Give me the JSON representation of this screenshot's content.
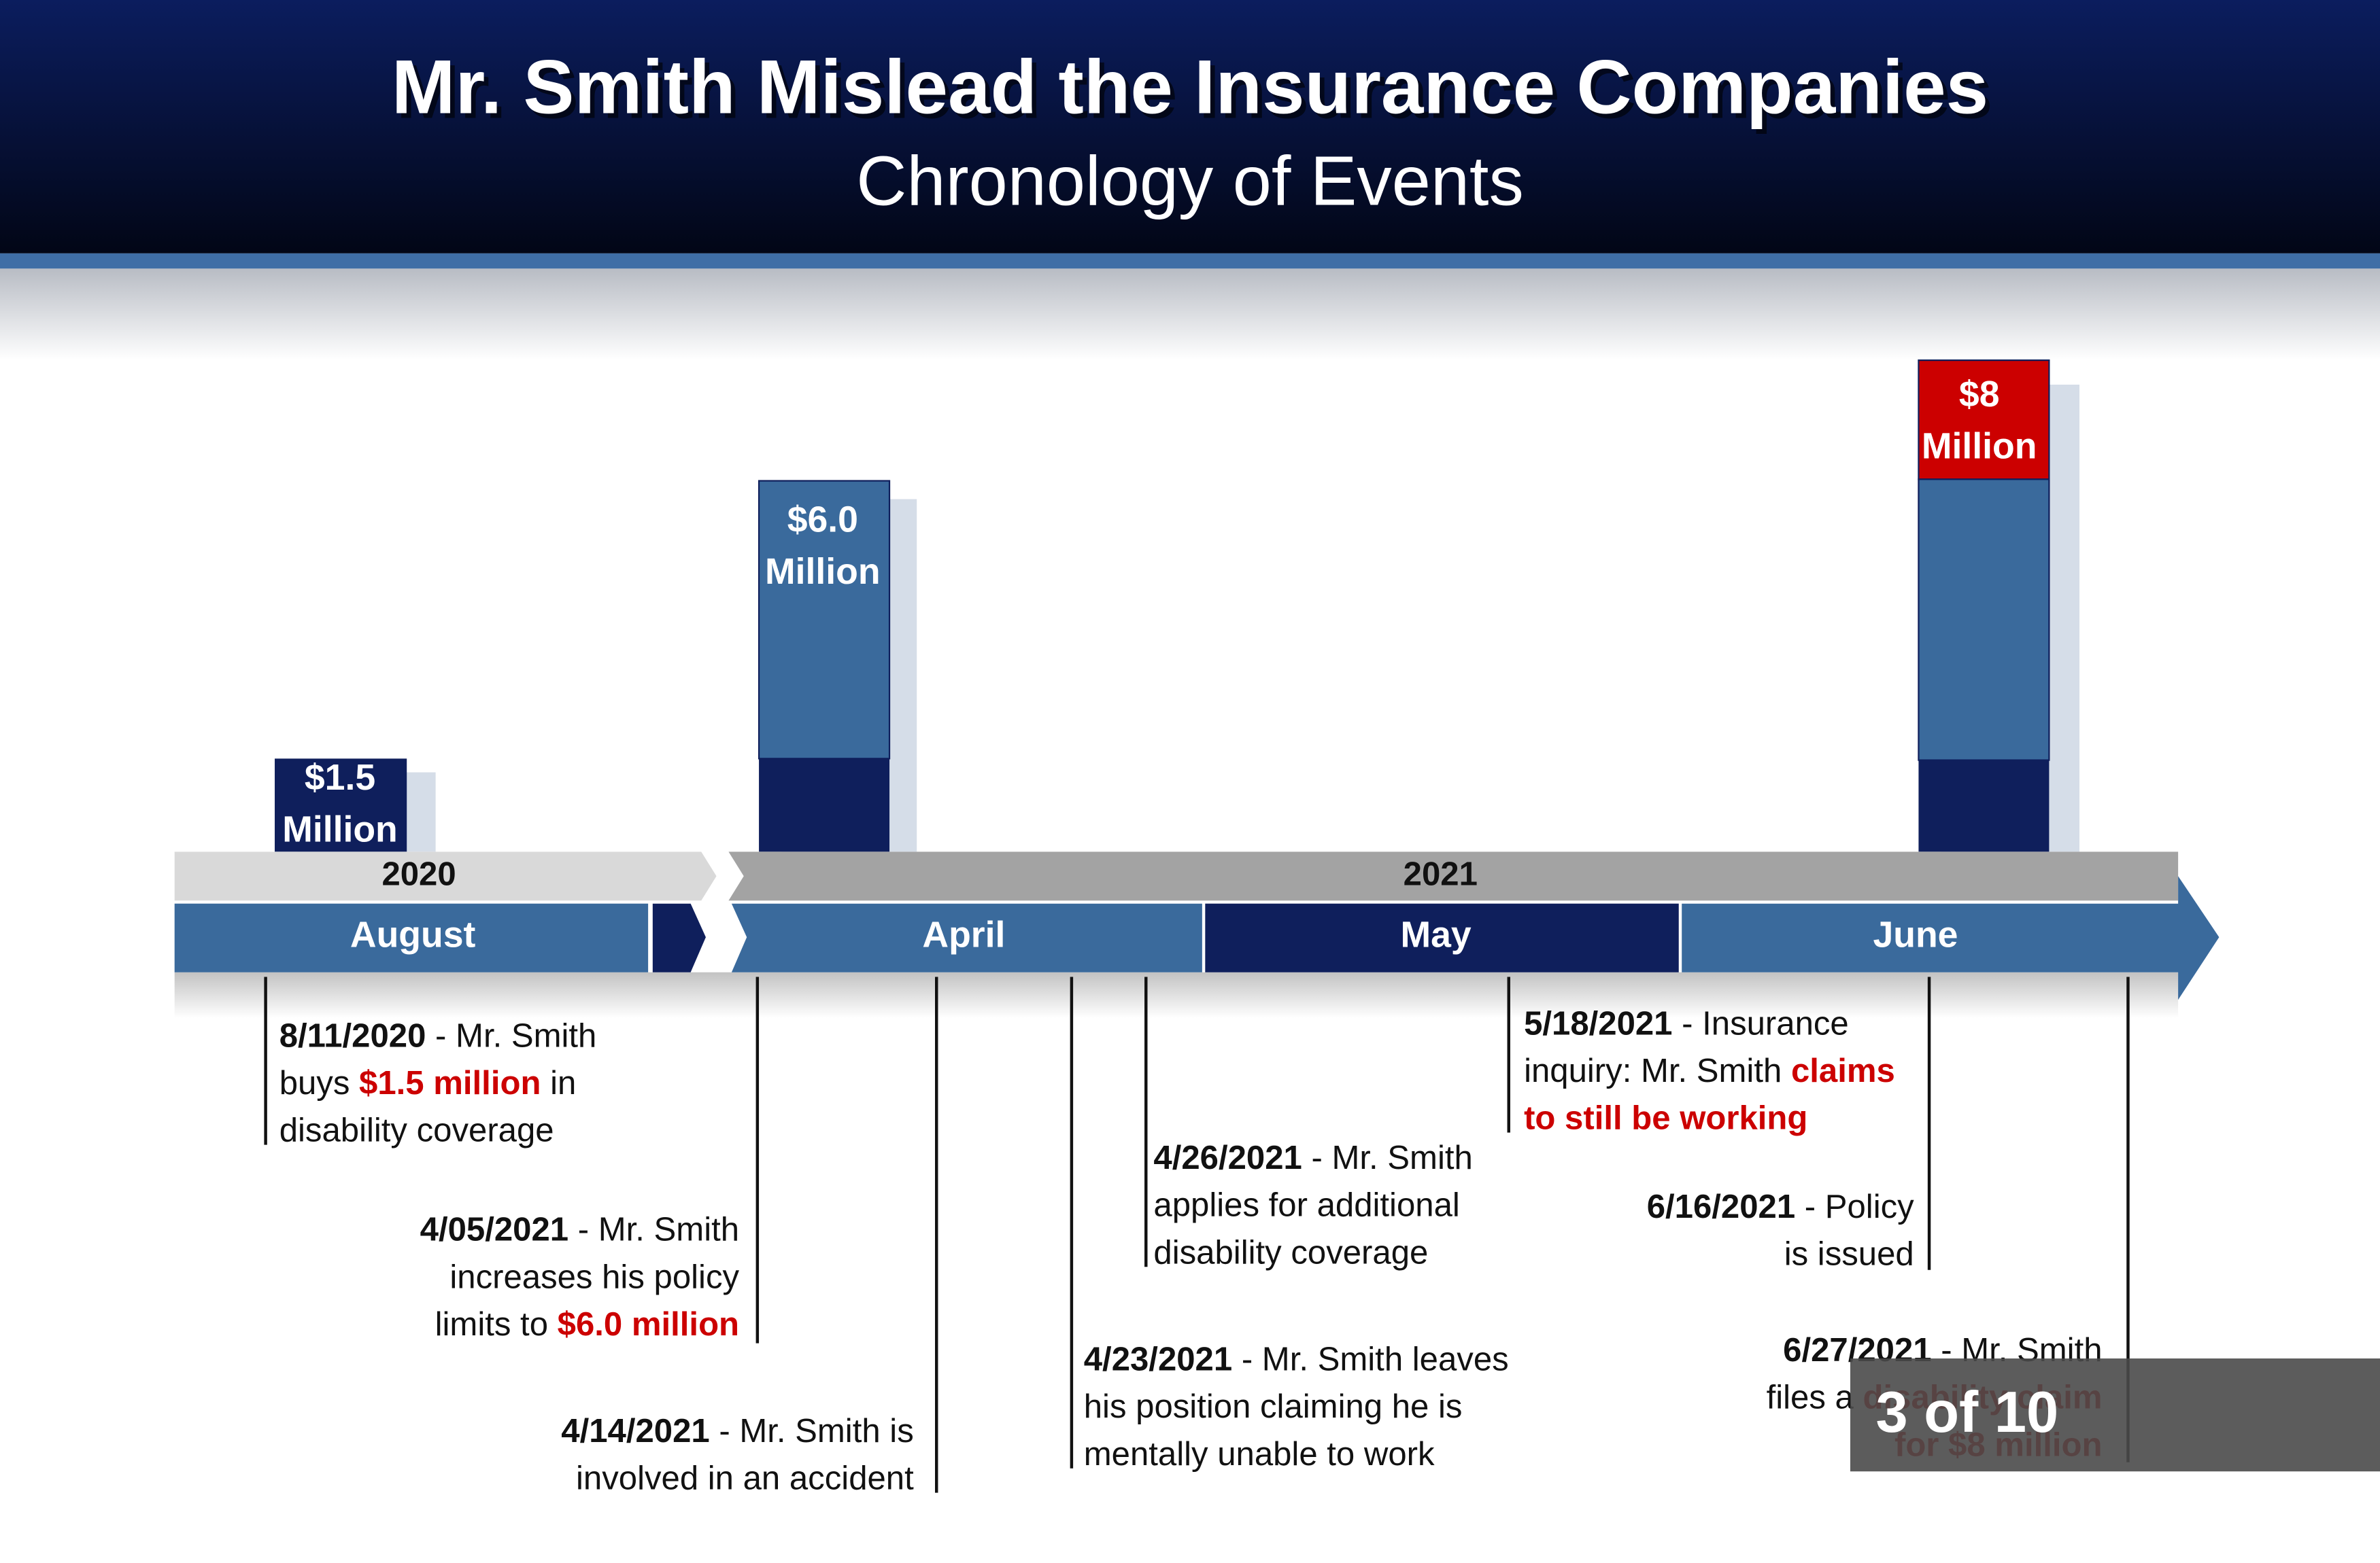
{
  "header": {
    "title": "Mr. Smith Mislead the Insurance Companies",
    "subtitle": "Chronology of Events"
  },
  "years": [
    "2020",
    "2021"
  ],
  "months": [
    "August",
    "April",
    "May",
    "June"
  ],
  "amounts": [
    {
      "amount": "$1.5",
      "unit": "Million"
    },
    {
      "amount": "$6.0",
      "unit": "Million"
    },
    {
      "amount": "$8",
      "unit": "Million"
    }
  ],
  "events": [
    {
      "lines": [
        [
          {
            "text": "8/11/2020",
            "style": "date"
          },
          {
            "text": " - Mr. Smith",
            "style": "plain"
          }
        ],
        [
          {
            "text": "buys ",
            "style": "plain"
          },
          {
            "text": "$1.5 million",
            "style": "highlight"
          },
          {
            "text": " in",
            "style": "plain"
          }
        ],
        [
          {
            "text": "disability coverage",
            "style": "plain"
          }
        ]
      ]
    },
    {
      "lines": [
        [
          {
            "text": "4/05/2021",
            "style": "date"
          },
          {
            "text": " - Mr. Smith",
            "style": "plain"
          }
        ],
        [
          {
            "text": "increases his policy",
            "style": "plain"
          }
        ],
        [
          {
            "text": "limits to ",
            "style": "plain"
          },
          {
            "text": "$6.0 million",
            "style": "highlight"
          }
        ]
      ]
    },
    {
      "lines": [
        [
          {
            "text": "4/14/2021",
            "style": "date"
          },
          {
            "text": " - Mr. Smith is",
            "style": "plain"
          }
        ],
        [
          {
            "text": "involved in an accident",
            "style": "plain"
          }
        ]
      ]
    },
    {
      "lines": [
        [
          {
            "text": "4/23/2021",
            "style": "date"
          },
          {
            "text": " - Mr. Smith leaves",
            "style": "plain"
          }
        ],
        [
          {
            "text": "his position claiming he is",
            "style": "plain"
          }
        ],
        [
          {
            "text": "mentally unable to work",
            "style": "plain"
          }
        ]
      ]
    },
    {
      "lines": [
        [
          {
            "text": "4/26/2021",
            "style": "date"
          },
          {
            "text": " - Mr. Smith",
            "style": "plain"
          }
        ],
        [
          {
            "text": "applies for additional",
            "style": "plain"
          }
        ],
        [
          {
            "text": "disability coverage",
            "style": "plain"
          }
        ]
      ]
    },
    {
      "lines": [
        [
          {
            "text": "5/18/2021",
            "style": "date"
          },
          {
            "text": " - Insurance",
            "style": "plain"
          }
        ],
        [
          {
            "text": "inquiry: Mr. Smith ",
            "style": "plain"
          },
          {
            "text": "claims",
            "style": "highlight"
          }
        ],
        [
          {
            "text": "to still be working",
            "style": "highlight"
          }
        ]
      ]
    },
    {
      "lines": [
        [
          {
            "text": "6/16/2021",
            "style": "date"
          },
          {
            "text": " - Policy",
            "style": "plain"
          }
        ],
        [
          {
            "text": "is issued",
            "style": "plain"
          }
        ]
      ]
    },
    {
      "lines": [
        [
          {
            "text": "6/27/2021",
            "style": "date"
          },
          {
            "text": " - Mr. Smith",
            "style": "plain"
          }
        ],
        [
          {
            "text": "files a ",
            "style": "plain"
          },
          {
            "text": "disability claim",
            "style": "highlight"
          }
        ],
        [
          {
            "text": "for $8 million",
            "style": "highlight"
          }
        ]
      ]
    }
  ],
  "badge": "3 of 10"
}
